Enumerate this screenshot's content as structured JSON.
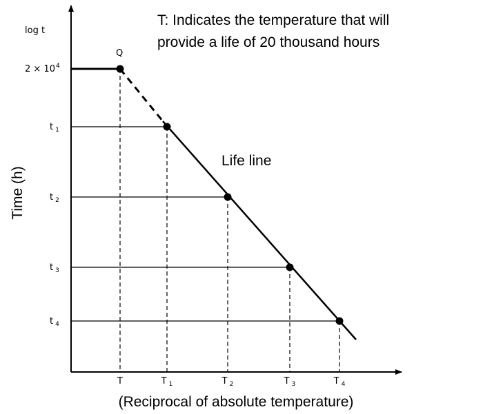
{
  "note": {
    "line1": "T: Indicates the temperature that will",
    "line2": "provide a life of 20 thousand hours"
  },
  "y_axis": {
    "label": "Time (h)",
    "scale": "log t"
  },
  "x_axis": {
    "label": "(Reciprocal of absolute temperature)"
  },
  "point_q": "Q",
  "life_line": "Life line",
  "y_labels": [
    {
      "main": "2 × 10",
      "sup": "4"
    },
    {
      "main": "t",
      "sub": "1"
    },
    {
      "main": "t",
      "sub": "2"
    },
    {
      "main": "t",
      "sub": "3"
    },
    {
      "main": "t",
      "sub": "4"
    }
  ],
  "x_labels": [
    {
      "main": "T"
    },
    {
      "main": "T",
      "sub": "1"
    },
    {
      "main": "T",
      "sub": "2"
    },
    {
      "main": "T",
      "sub": "3"
    },
    {
      "main": "T",
      "sub": "4"
    }
  ]
}
